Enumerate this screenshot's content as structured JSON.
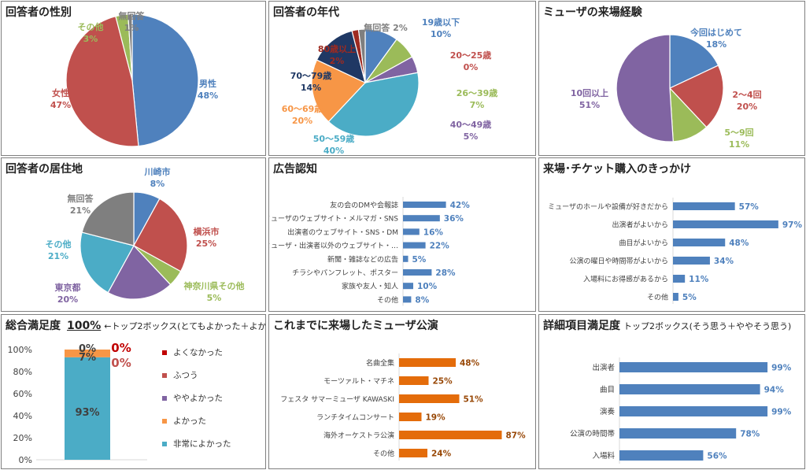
{
  "panels": {
    "gender": {
      "title": "回答者の性別",
      "chart_data": {
        "type": "pie",
        "slices": [
          {
            "label": "男性",
            "value": 48,
            "text": "48%",
            "color": "#4f81bd"
          },
          {
            "label": "女性",
            "value": 47,
            "text": "47%",
            "color": "#c0504d"
          },
          {
            "label": "その他",
            "value": 3,
            "text": "3%",
            "color": "#9bbb59"
          },
          {
            "label": "無回答",
            "value": 1,
            "text": "1%",
            "color": "#7f7f7f"
          }
        ]
      }
    },
    "age": {
      "title": "回答者の年代",
      "chart_data": {
        "type": "pie",
        "slices": [
          {
            "label": "19歳以下",
            "value": 10,
            "text": "10%",
            "color": "#4f81bd"
          },
          {
            "label": "20～25歳",
            "value": 0,
            "text": "0%",
            "color": "#c0504d"
          },
          {
            "label": "26～39歳",
            "value": 7,
            "text": "7%",
            "color": "#9bbb59"
          },
          {
            "label": "40～49歳",
            "value": 5,
            "text": "5%",
            "color": "#8064a2"
          },
          {
            "label": "50～59歳",
            "value": 40,
            "text": "40%",
            "color": "#4bacc6"
          },
          {
            "label": "60～69歳",
            "value": 20,
            "text": "20%",
            "color": "#f79646"
          },
          {
            "label": "70～79歳",
            "value": 14,
            "text": "14%",
            "color": "#1f3864"
          },
          {
            "label": "80歳以上",
            "value": 2,
            "text": "2%",
            "color": "#9e2a20"
          },
          {
            "label": "無回答",
            "value": 2,
            "text": "2%",
            "color": "#7f7f7f"
          }
        ]
      }
    },
    "visits": {
      "title": "ミューザの来場経験",
      "chart_data": {
        "type": "pie",
        "slices": [
          {
            "label": "今回はじめて",
            "value": 18,
            "text": "18%",
            "color": "#4f81bd"
          },
          {
            "label": "2～4回",
            "value": 20,
            "text": "20%",
            "color": "#c0504d"
          },
          {
            "label": "5～9回",
            "value": 11,
            "text": "11%",
            "color": "#9bbb59"
          },
          {
            "label": "10回以上",
            "value": 51,
            "text": "51%",
            "color": "#8064a2"
          }
        ]
      }
    },
    "residence": {
      "title": "回答者の居住地",
      "chart_data": {
        "type": "pie",
        "slices": [
          {
            "label": "川崎市",
            "value": 8,
            "text": "8%",
            "color": "#4f81bd"
          },
          {
            "label": "横浜市",
            "value": 25,
            "text": "25%",
            "color": "#c0504d"
          },
          {
            "label": "神奈川県その他",
            "value": 5,
            "text": "5%",
            "color": "#9bbb59"
          },
          {
            "label": "東京都",
            "value": 20,
            "text": "20%",
            "color": "#8064a2"
          },
          {
            "label": "その他",
            "value": 21,
            "text": "21%",
            "color": "#4bacc6"
          },
          {
            "label": "無回答",
            "value": 21,
            "text": "21%",
            "color": "#7f7f7f"
          }
        ]
      }
    },
    "ads": {
      "title": "広告認知",
      "chart_data": {
        "type": "bar",
        "orientation": "horizontal",
        "color": "#4f81bd",
        "label_color": "#4f81bd",
        "xlim": [
          0,
          100
        ],
        "categories": [
          "友の会のDMや会報誌",
          "ミューザのウェブサイト・メルマガ・SNS",
          "出演者のウェブサイト・SNS・DM",
          "ミューザ・出演者以外のウェブサイト・…",
          "新聞・雑誌などの広告",
          "チラシやパンフレット、ポスター",
          "家族や友人・知人",
          "その他"
        ],
        "values": [
          42,
          36,
          16,
          22,
          5,
          28,
          10,
          8
        ],
        "value_labels": [
          "42%",
          "36%",
          "16%",
          "22%",
          "5%",
          "28%",
          "10%",
          "8%"
        ]
      }
    },
    "motive": {
      "title": "来場･チケット購入のきっかけ",
      "chart_data": {
        "type": "bar",
        "orientation": "horizontal",
        "color": "#4f81bd",
        "label_color": "#4f81bd",
        "xlim": [
          0,
          100
        ],
        "categories": [
          "ミューザのホールや設備が好きだから",
          "出演者がよいから",
          "曲目がよいから",
          "公演の曜日や時間帯がよいから",
          "入場料にお得感があるから",
          "その他"
        ],
        "values": [
          57,
          97,
          48,
          34,
          11,
          5
        ],
        "value_labels": [
          "57%",
          "97%",
          "48%",
          "34%",
          "11%",
          "5%"
        ]
      }
    },
    "overall": {
      "title": "総合満足度",
      "headline": "100%",
      "note": "←トップ2ボックス(とてもよかった＋よかった)",
      "chart_data": {
        "type": "bar",
        "stacked": true,
        "ylim": [
          0,
          100
        ],
        "yticks": [
          "0%",
          "20%",
          "40%",
          "60%",
          "80%",
          "100%"
        ],
        "series": [
          {
            "name": "非常によかった",
            "value": 93,
            "text": "93%",
            "color": "#4bacc6"
          },
          {
            "name": "よかった",
            "value": 7,
            "text": "7%",
            "color": "#f79646"
          },
          {
            "name": "ややよかった",
            "value": 0,
            "text": "0%",
            "color": "#8064a2"
          },
          {
            "name": "ふつう",
            "value": 0,
            "text": "0%",
            "color": "#c0504d"
          },
          {
            "name": "よくなかった",
            "value": 0,
            "text": "0%",
            "color": "#c00000"
          }
        ],
        "legend": [
          {
            "name": "よくなかった",
            "color": "#c00000"
          },
          {
            "name": "ふつう",
            "color": "#c0504d"
          },
          {
            "name": "ややよかった",
            "color": "#8064a2"
          },
          {
            "name": "よかった",
            "color": "#f79646"
          },
          {
            "name": "非常によかった",
            "color": "#4bacc6"
          }
        ]
      }
    },
    "past": {
      "title": "これまでに来場したミューザ公演",
      "chart_data": {
        "type": "bar",
        "orientation": "horizontal",
        "color": "#e46c0a",
        "label_color": "#984807",
        "xlim": [
          0,
          100
        ],
        "categories": [
          "名曲全集",
          "モーツァルト・マチネ",
          "フェスタ サマーミューザ KAWASKI",
          "ランチタイムコンサート",
          "海外オーケストラ公演",
          "その他"
        ],
        "values": [
          48,
          25,
          51,
          19,
          87,
          24
        ],
        "value_labels": [
          "48%",
          "25%",
          "51%",
          "19%",
          "87%",
          "24%"
        ]
      }
    },
    "detail": {
      "title": "詳細項目満足度",
      "subtitle": "トップ2ボックス(そう思う＋ややそう思う)",
      "chart_data": {
        "type": "bar",
        "orientation": "horizontal",
        "color": "#4f81bd",
        "label_color": "#4f81bd",
        "xlim": [
          0,
          100
        ],
        "categories": [
          "出演者",
          "曲目",
          "演奏",
          "公演の時間帯",
          "入場料"
        ],
        "values": [
          99,
          94,
          99,
          78,
          56
        ],
        "value_labels": [
          "99%",
          "94%",
          "99%",
          "78%",
          "56%"
        ]
      }
    }
  }
}
